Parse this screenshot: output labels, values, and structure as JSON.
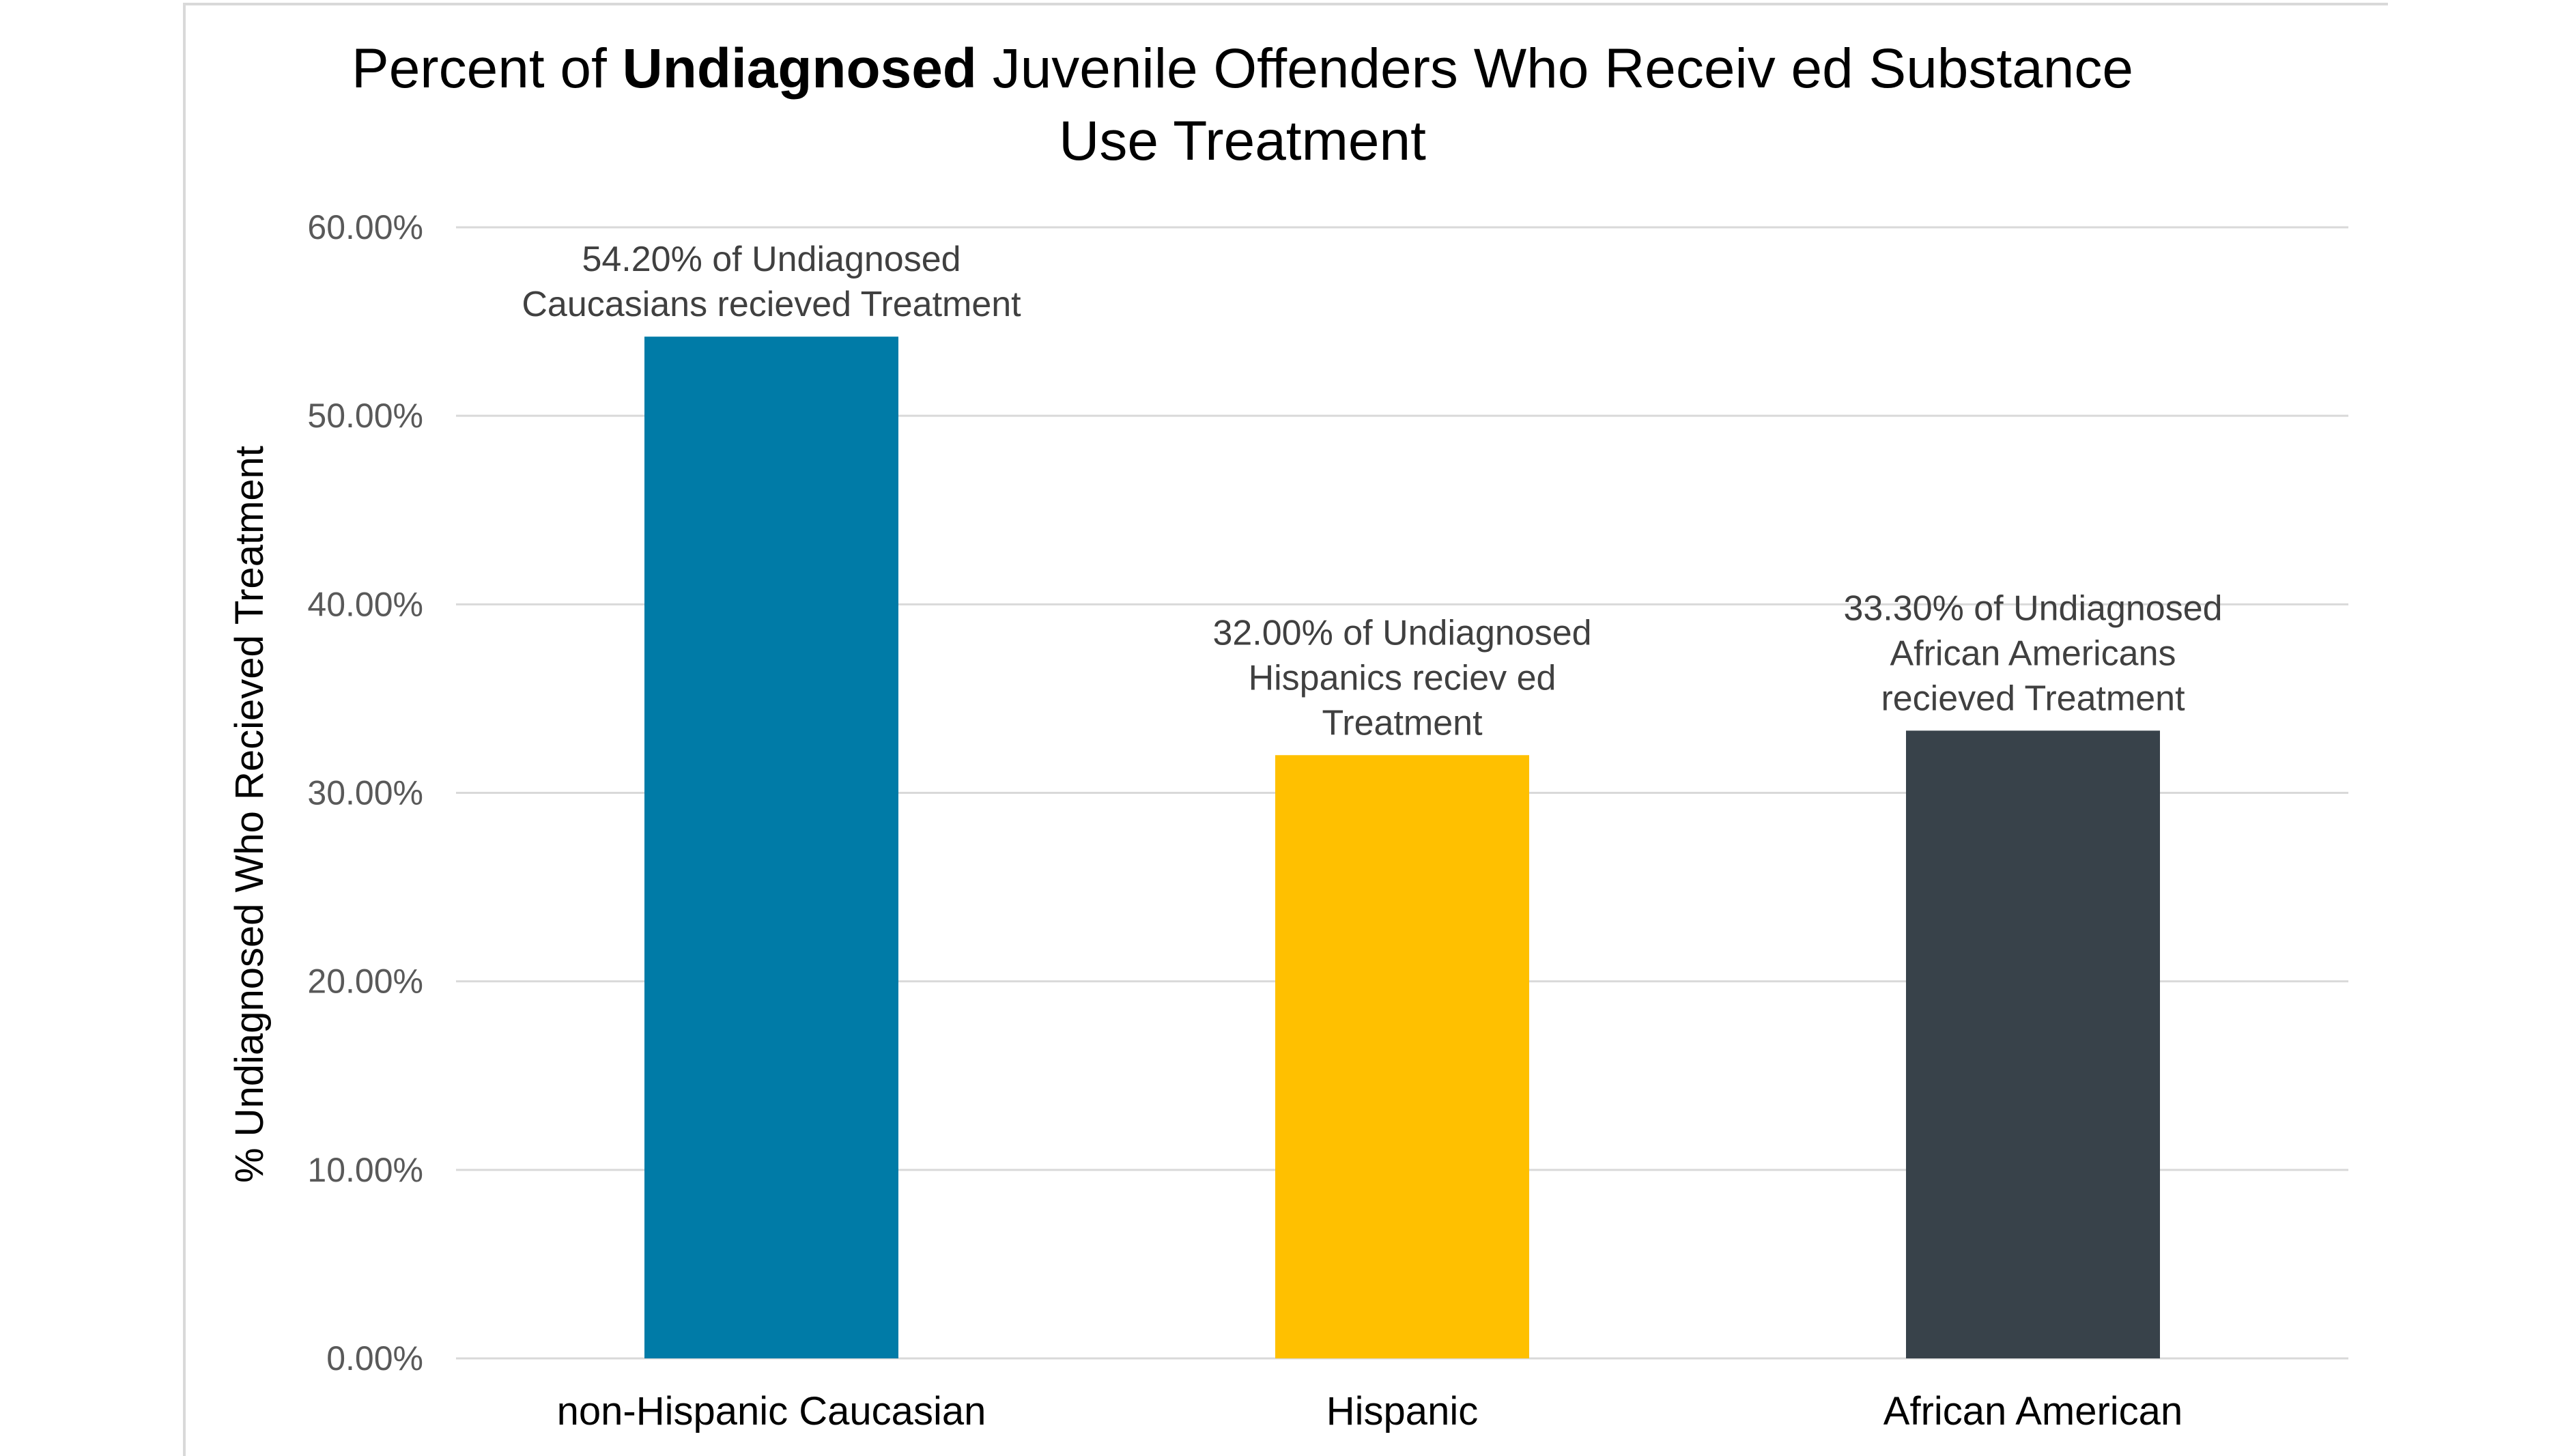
{
  "chart_data": {
    "type": "bar",
    "title_parts": {
      "before": "Percent of ",
      "bold": "Undiagnosed",
      "after": " Juvenile Offenders Who Receiv ed Substance Use Treatment"
    },
    "ylabel": "% Undiagnosed Who Recieved Treatment",
    "xlabel": "",
    "ylim": [
      0,
      0.6
    ],
    "yticks": [
      "0.00%",
      "10.00%",
      "20.00%",
      "30.00%",
      "40.00%",
      "50.00%",
      "60.00%"
    ],
    "grid": true,
    "categories": [
      "non-Hispanic Caucasian",
      "Hispanic",
      "African American"
    ],
    "values": [
      0.542,
      0.32,
      0.333
    ],
    "colors": [
      "#007ba7",
      "#ffc000",
      "#38424a"
    ],
    "data_labels": [
      [
        "54.20% of Undiagnosed",
        "Caucasians recieved Treatment"
      ],
      [
        "32.00% of Undiagnosed",
        "Hispanics reciev ed",
        "Treatment"
      ],
      [
        "33.30% of Undiagnosed",
        "African Americans",
        "recieved Treatment"
      ]
    ]
  }
}
